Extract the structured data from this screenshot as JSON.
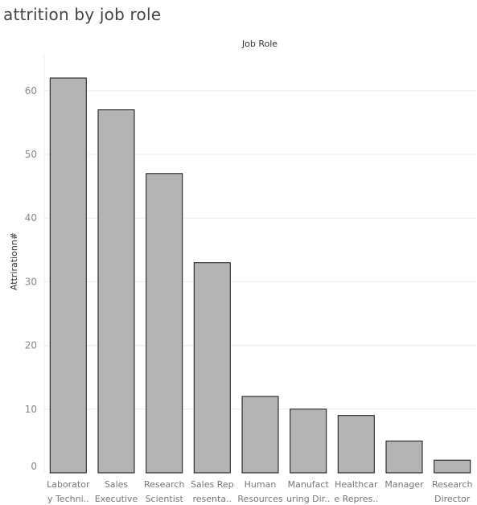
{
  "page_title": "attrition by job role",
  "colors": {
    "bar_fill": "#b4b4b4",
    "bar_stroke": "#111111",
    "grid": "#ececec"
  },
  "chart_data": {
    "type": "bar",
    "title": "attrition by job role",
    "column_header": "Job Role",
    "xlabel": "",
    "ylabel": "Attrirationn#",
    "categories": [
      [
        "Laborator",
        "y Techni.."
      ],
      [
        "Sales",
        "Executive"
      ],
      [
        "Research",
        "Scientist"
      ],
      [
        "Sales Rep",
        "resenta.."
      ],
      [
        "Human",
        "Resources"
      ],
      [
        "Manufact",
        "uring Dir.."
      ],
      [
        "Healthcar",
        "e Repres.."
      ],
      [
        "Manager"
      ],
      [
        "Research",
        "Director"
      ]
    ],
    "values": [
      62,
      57,
      47,
      33,
      12,
      10,
      9,
      5,
      2
    ],
    "yticks": [
      0,
      10,
      20,
      30,
      40,
      50,
      60
    ],
    "ylim": [
      0,
      66
    ],
    "grid": true
  }
}
